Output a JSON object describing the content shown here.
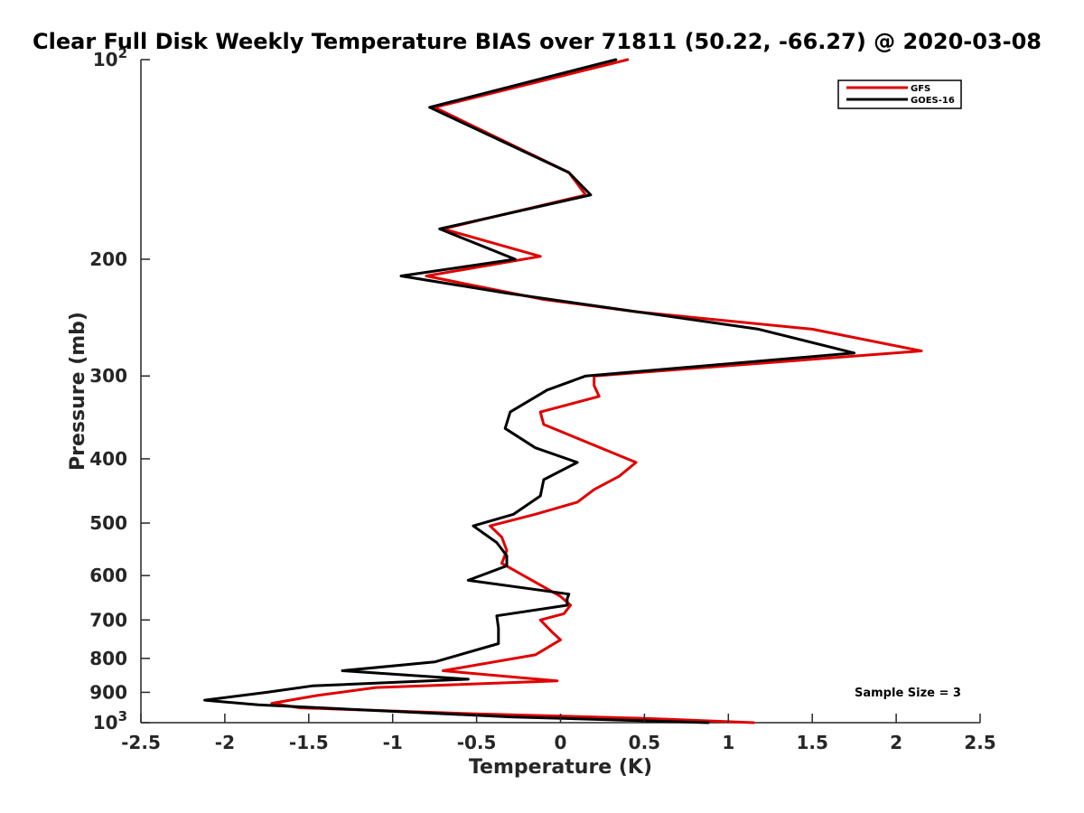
{
  "chart_data": {
    "type": "line",
    "title": "Clear Full Disk Weekly Temperature BIAS over 71811 (50.22, -66.27) @ 2020-03-08",
    "xlabel": "Temperature (K)",
    "ylabel": "Pressure (mb)",
    "xlim": [
      -2.5,
      2.5
    ],
    "ylim": [
      100,
      1000
    ],
    "y_scale": "log",
    "y_reversed": true,
    "grid": false,
    "legend_position": "top-right",
    "x_ticks": [
      -2.5,
      -2,
      -1.5,
      -1,
      -0.5,
      0,
      0.5,
      1,
      1.5,
      2,
      2.5
    ],
    "x_tick_labels": [
      "-2.5",
      "-2",
      "-1.5",
      "-1",
      "-0.5",
      "0",
      "0.5",
      "1",
      "1.5",
      "2",
      "2.5"
    ],
    "y_ticks": [
      {
        "value": 100,
        "base": "10",
        "exp": "2"
      },
      {
        "value": 200,
        "label": "200"
      },
      {
        "value": 300,
        "label": "300"
      },
      {
        "value": 400,
        "label": "400"
      },
      {
        "value": 500,
        "label": "500"
      },
      {
        "value": 600,
        "label": "600"
      },
      {
        "value": 700,
        "label": "700"
      },
      {
        "value": 800,
        "label": "800"
      },
      {
        "value": 900,
        "label": "900"
      },
      {
        "value": 1000,
        "base": "10",
        "exp": "3"
      }
    ],
    "annotation": "Sample Size = 3",
    "series": [
      {
        "name": "GFS",
        "color": "#e00000",
        "x": [
          0.4,
          -0.75,
          0.05,
          0.15,
          -0.7,
          -0.12,
          -0.8,
          -0.1,
          0.45,
          1.5,
          2.15,
          0.2,
          0.2,
          0.23,
          -0.12,
          -0.1,
          0.45,
          0.35,
          0.2,
          0.1,
          -0.15,
          -0.42,
          -0.35,
          -0.32,
          -0.35,
          0.0,
          0.06,
          0.02,
          -0.12,
          -0.05,
          0.0,
          -0.15,
          -0.7,
          -0.02,
          -1.1,
          -1.45,
          -1.72,
          -1.55,
          -0.5,
          0.5,
          1.15
        ],
        "y": [
          100,
          118,
          148,
          160,
          180,
          198,
          212,
          230,
          240,
          255,
          275,
          300,
          310,
          322,
          340,
          355,
          405,
          425,
          445,
          465,
          485,
          505,
          525,
          550,
          575,
          645,
          665,
          685,
          700,
          730,
          750,
          790,
          835,
          865,
          885,
          910,
          935,
          950,
          970,
          985,
          1000
        ]
      },
      {
        "name": "GOES-16",
        "color": "#000000",
        "x": [
          0.33,
          -0.78,
          0.05,
          0.18,
          -0.72,
          -0.27,
          -0.95,
          -0.32,
          1.18,
          1.75,
          0.15,
          -0.08,
          -0.3,
          -0.33,
          -0.15,
          0.1,
          -0.1,
          -0.12,
          -0.28,
          -0.52,
          -0.38,
          -0.32,
          -0.32,
          -0.55,
          0.05,
          0.04,
          0.04,
          -0.38,
          -0.37,
          -0.37,
          -0.75,
          -1.3,
          -0.55,
          -1.48,
          -1.75,
          -2.12,
          -1.8,
          -0.3,
          0.88
        ],
        "y": [
          100,
          118,
          148,
          160,
          180,
          200,
          212,
          225,
          255,
          277,
          300,
          315,
          340,
          360,
          385,
          405,
          430,
          455,
          485,
          505,
          535,
          560,
          580,
          610,
          640,
          650,
          665,
          690,
          720,
          760,
          810,
          835,
          860,
          880,
          900,
          925,
          940,
          980,
          1000
        ]
      }
    ]
  }
}
